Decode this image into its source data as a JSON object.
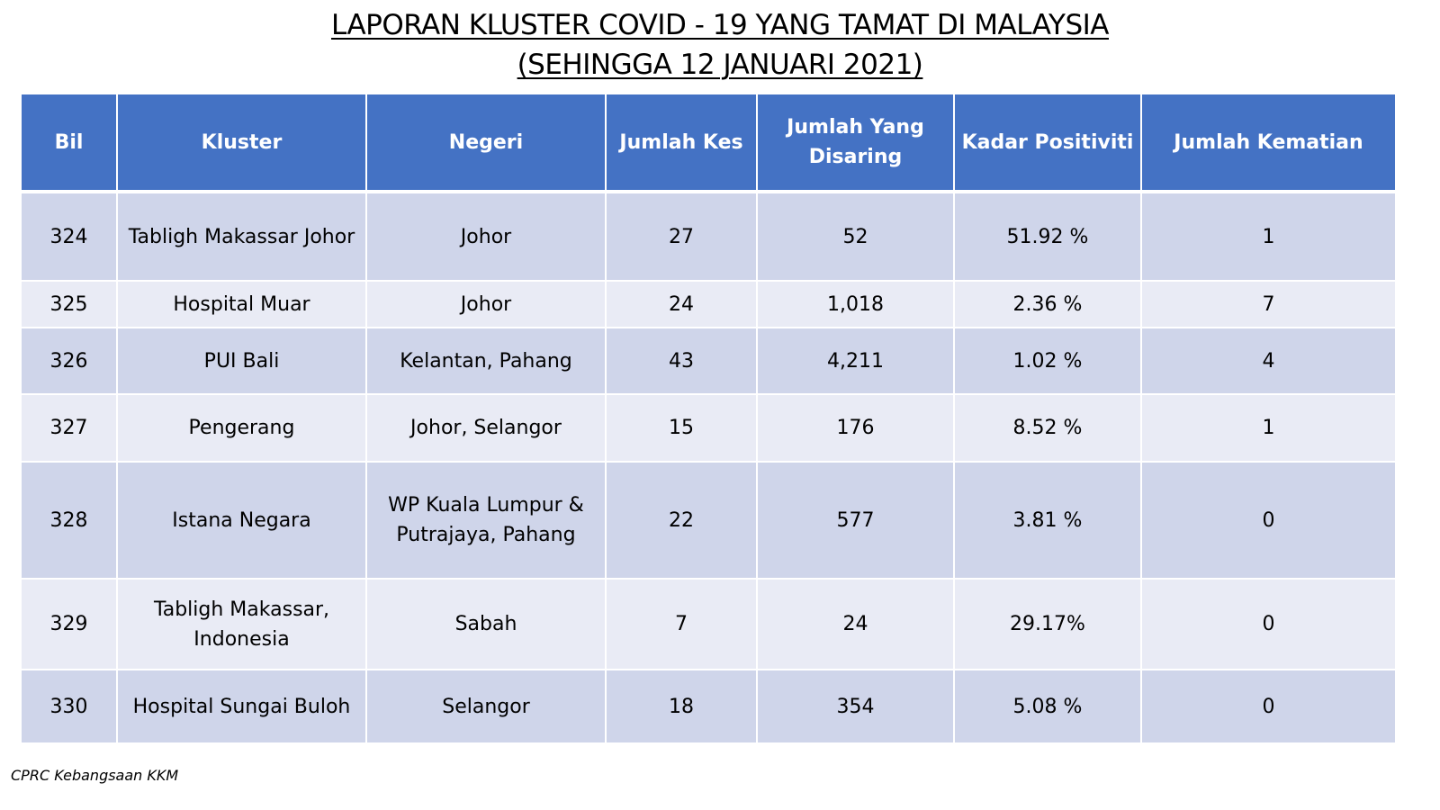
{
  "title": {
    "line1": "LAPORAN KLUSTER COVID - 19 YANG TAMAT DI MALAYSIA",
    "line2": "(SEHINGGA 12 JANUARI 2021)"
  },
  "table": {
    "headers": {
      "bil": "Bil",
      "kluster": "Kluster",
      "negeri": "Negeri",
      "jumlah_kes": "Jumlah Kes",
      "jumlah_disaring": "Jumlah Yang Disaring",
      "kadar_positiviti": "Kadar Positiviti",
      "jumlah_kematian": "Jumlah Kematian"
    },
    "rows": [
      {
        "bil": "324",
        "kluster": "Tabligh Makassar Johor",
        "negeri": "Johor",
        "jumlah_kes": "27",
        "jumlah_disaring": "52",
        "kadar_positiviti": "51.92 %",
        "jumlah_kematian": "1"
      },
      {
        "bil": "325",
        "kluster": "Hospital Muar",
        "negeri": "Johor",
        "jumlah_kes": "24",
        "jumlah_disaring": "1,018",
        "kadar_positiviti": "2.36 %",
        "jumlah_kematian": "7"
      },
      {
        "bil": "326",
        "kluster": "PUI Bali",
        "negeri": "Kelantan, Pahang",
        "jumlah_kes": "43",
        "jumlah_disaring": "4,211",
        "kadar_positiviti": "1.02 %",
        "jumlah_kematian": "4"
      },
      {
        "bil": "327",
        "kluster": "Pengerang",
        "negeri": "Johor, Selangor",
        "jumlah_kes": "15",
        "jumlah_disaring": "176",
        "kadar_positiviti": "8.52 %",
        "jumlah_kematian": "1"
      },
      {
        "bil": "328",
        "kluster": "Istana Negara",
        "negeri": "WP Kuala Lumpur & Putrajaya, Pahang",
        "jumlah_kes": "22",
        "jumlah_disaring": "577",
        "kadar_positiviti": "3.81 %",
        "jumlah_kematian": "0"
      },
      {
        "bil": "329",
        "kluster": "Tabligh Makassar, Indonesia",
        "negeri": "Sabah",
        "jumlah_kes": "7",
        "jumlah_disaring": "24",
        "kadar_positiviti": "29.17%",
        "jumlah_kematian": "0"
      },
      {
        "bil": "330",
        "kluster": "Hospital Sungai Buloh",
        "negeri": "Selangor",
        "jumlah_kes": "18",
        "jumlah_disaring": "354",
        "kadar_positiviti": "5.08 %",
        "jumlah_kematian": "0"
      }
    ]
  },
  "footer": {
    "source": "CPRC Kebangsaan KKM"
  },
  "colors": {
    "header_bg": "#4472c4",
    "row_dark": "#cfd5ea",
    "row_light": "#e9ebf5"
  }
}
